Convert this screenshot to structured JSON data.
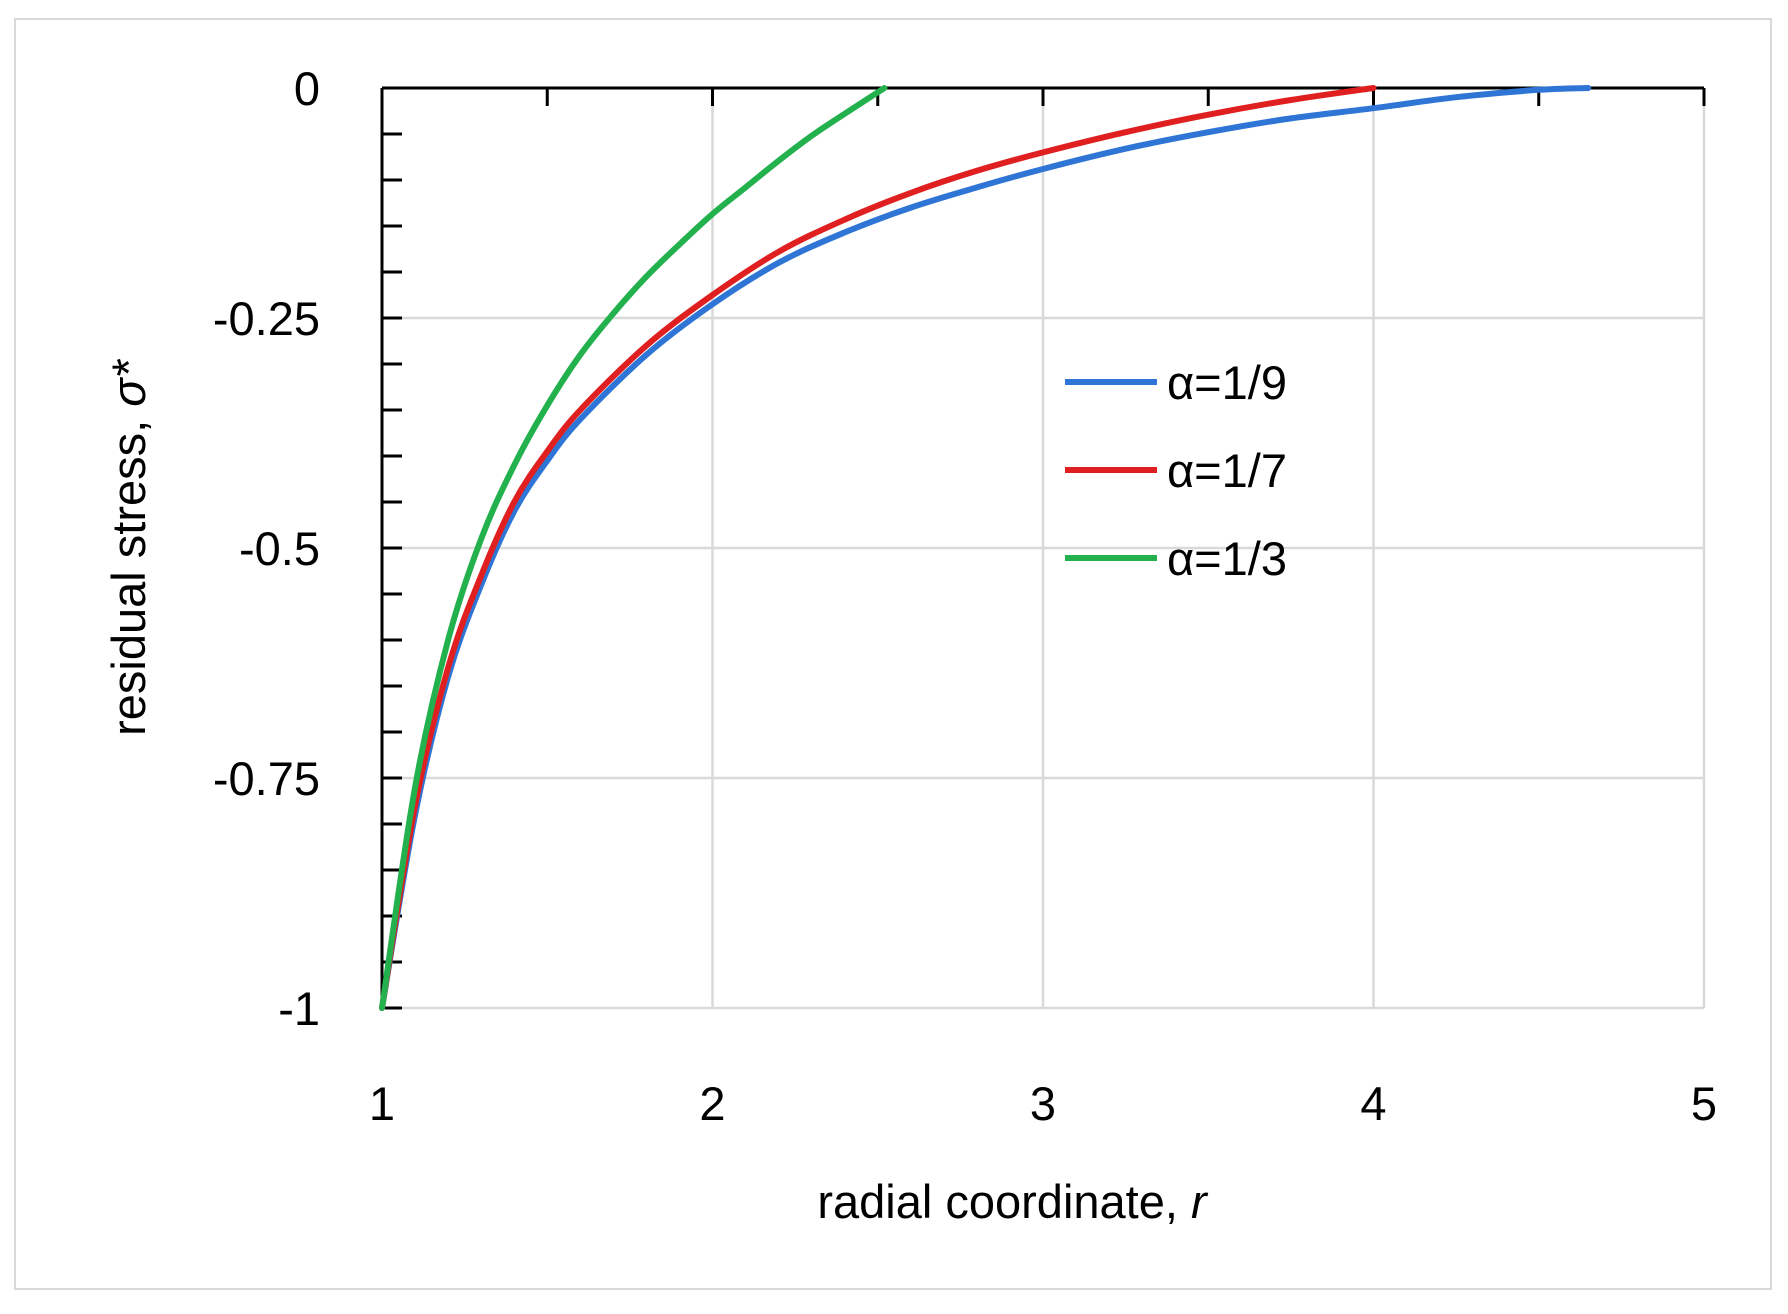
{
  "chart_data": {
    "type": "line",
    "xlabel": "radial coordinate, ",
    "xlabel_var": "r",
    "ylabel": "residual stress, ",
    "ylabel_var": "σ*",
    "xlim": [
      1,
      5
    ],
    "ylim": [
      -1,
      0
    ],
    "x_ticks": [
      1,
      2,
      3,
      4,
      5
    ],
    "x_tick_labels": [
      "1",
      "2",
      "3",
      "4",
      "5"
    ],
    "y_ticks": [
      0,
      -0.25,
      -0.5,
      -0.75,
      -1
    ],
    "y_tick_labels": [
      "0",
      "-0.25",
      "-0.5",
      "-0.75",
      "-1"
    ],
    "y_minor_step": 0.05,
    "grid": true,
    "legend_position": "center-right",
    "series": [
      {
        "name": "α=1/9",
        "color": "#2e75d6",
        "x": [
          1.0,
          1.1,
          1.2,
          1.3,
          1.4,
          1.5,
          1.6,
          1.8,
          2.0,
          2.2,
          2.4,
          2.6,
          2.8,
          3.0,
          3.25,
          3.5,
          3.75,
          4.0,
          4.25,
          4.5,
          4.65
        ],
        "y": [
          -1.0,
          -0.79,
          -0.64,
          -0.54,
          -0.46,
          -0.405,
          -0.36,
          -0.29,
          -0.235,
          -0.19,
          -0.157,
          -0.13,
          -0.108,
          -0.088,
          -0.066,
          -0.048,
          -0.033,
          -0.022,
          -0.01,
          -0.002,
          0.0
        ]
      },
      {
        "name": "α=1/7",
        "color": "#e02020",
        "x": [
          1.0,
          1.1,
          1.2,
          1.3,
          1.4,
          1.5,
          1.6,
          1.8,
          2.0,
          2.2,
          2.4,
          2.6,
          2.8,
          3.0,
          3.25,
          3.5,
          3.75,
          4.0
        ],
        "y": [
          -1.0,
          -0.78,
          -0.63,
          -0.53,
          -0.45,
          -0.395,
          -0.35,
          -0.28,
          -0.225,
          -0.178,
          -0.143,
          -0.114,
          -0.09,
          -0.07,
          -0.048,
          -0.029,
          -0.013,
          0.0
        ]
      },
      {
        "name": "α=1/3",
        "color": "#22b14c",
        "x": [
          1.0,
          1.1,
          1.2,
          1.3,
          1.4,
          1.5,
          1.6,
          1.7,
          1.8,
          1.9,
          2.0,
          2.1,
          2.2,
          2.3,
          2.4,
          2.52
        ],
        "y": [
          -1.0,
          -0.76,
          -0.6,
          -0.49,
          -0.41,
          -0.345,
          -0.29,
          -0.245,
          -0.205,
          -0.17,
          -0.137,
          -0.108,
          -0.079,
          -0.052,
          -0.028,
          0.0
        ]
      }
    ]
  }
}
